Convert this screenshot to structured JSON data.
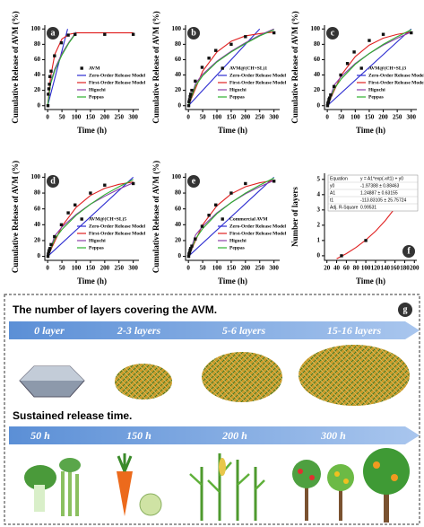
{
  "chart_data": [
    {
      "type": "scatter",
      "panel_label": "a",
      "x_label": "Time (h)",
      "y_label": "Cumulative Release of AVM (%)",
      "xlim": [
        -10,
        320
      ],
      "ylim": [
        -5,
        105
      ],
      "xticks": [
        0,
        50,
        100,
        150,
        200,
        250,
        300
      ],
      "yticks": [
        0,
        20,
        40,
        60,
        80,
        100
      ],
      "legend": "lower right",
      "series": [
        {
          "name": "AVM",
          "mode": "markers",
          "color": "#111111",
          "x": [
            1,
            2,
            4,
            6,
            8,
            12,
            24,
            48,
            72,
            96,
            200,
            300
          ],
          "values": [
            0,
            15,
            22,
            28,
            38,
            45,
            65,
            82,
            92,
            93,
            93,
            93
          ]
        },
        {
          "name": "Zero-Order Release Model",
          "mode": "lines",
          "color": "#2b2bd0",
          "x": [
            0,
            70
          ],
          "values": [
            0,
            100
          ]
        },
        {
          "name": "First-Order Release Model",
          "mode": "lines",
          "color": "#e02020",
          "x": [
            0,
            10,
            25,
            50,
            75,
            100,
            150,
            200,
            300
          ],
          "values": [
            0,
            37,
            67,
            87,
            93,
            95,
            95,
            95,
            95
          ]
        },
        {
          "name": "Higuchi",
          "mode": "lines",
          "color": "#8a3fa8",
          "x": [
            0,
            10,
            25,
            50,
            75,
            100
          ],
          "values": [
            0,
            30,
            48,
            68,
            83,
            96
          ]
        },
        {
          "name": "Peppas",
          "mode": "lines",
          "color": "#2fb02f",
          "x": [
            0,
            10,
            25,
            50,
            75,
            100
          ],
          "values": [
            0,
            28,
            46,
            66,
            82,
            95
          ]
        }
      ]
    },
    {
      "type": "scatter",
      "panel_label": "b",
      "x_label": "Time (h)",
      "y_label": "Cumulative Release of AVM (%)",
      "xlim": [
        -10,
        320
      ],
      "ylim": [
        -5,
        105
      ],
      "xticks": [
        0,
        50,
        100,
        150,
        200,
        250,
        300
      ],
      "yticks": [
        0,
        20,
        40,
        60,
        80,
        100
      ],
      "legend": "lower right",
      "series": [
        {
          "name": "AVM@(CH+SL)1",
          "mode": "markers",
          "color": "#111111",
          "x": [
            1,
            2,
            4,
            6,
            8,
            12,
            24,
            48,
            72,
            96,
            150,
            200,
            300
          ],
          "values": [
            0,
            5,
            8,
            12,
            15,
            20,
            32,
            50,
            62,
            72,
            80,
            90,
            95
          ]
        },
        {
          "name": "Zero-Order Release Model",
          "mode": "lines",
          "color": "#2b2bd0",
          "x": [
            0,
            250
          ],
          "values": [
            0,
            100
          ]
        },
        {
          "name": "First-Order Release Model",
          "mode": "lines",
          "color": "#e02020",
          "x": [
            0,
            50,
            100,
            150,
            200,
            250,
            300
          ],
          "values": [
            0,
            45,
            70,
            84,
            91,
            94,
            96
          ]
        },
        {
          "name": "Higuchi",
          "mode": "lines",
          "color": "#8a3fa8",
          "x": [
            0,
            25,
            50,
            100,
            150,
            200,
            250,
            300
          ],
          "values": [
            0,
            29,
            41,
            58,
            71,
            82,
            92,
            100
          ]
        },
        {
          "name": "Peppas",
          "mode": "lines",
          "color": "#2fb02f",
          "x": [
            0,
            25,
            50,
            100,
            150,
            200,
            250,
            300
          ],
          "values": [
            0,
            26,
            39,
            57,
            70,
            81,
            91,
            99
          ]
        }
      ]
    },
    {
      "type": "scatter",
      "panel_label": "c",
      "x_label": "Time (h)",
      "y_label": "Cumulative Release of AVM (%)",
      "xlim": [
        -10,
        320
      ],
      "ylim": [
        -5,
        105
      ],
      "xticks": [
        0,
        50,
        100,
        150,
        200,
        250,
        300
      ],
      "yticks": [
        0,
        20,
        40,
        60,
        80,
        100
      ],
      "legend": "lower right",
      "series": [
        {
          "name": "AVM@(CH+SL)3",
          "mode": "markers",
          "color": "#111111",
          "x": [
            1,
            2,
            4,
            6,
            8,
            12,
            24,
            48,
            72,
            96,
            150,
            200,
            300
          ],
          "values": [
            0,
            3,
            5,
            8,
            10,
            14,
            25,
            40,
            55,
            70,
            85,
            93,
            95
          ]
        },
        {
          "name": "Zero-Order Release Model",
          "mode": "lines",
          "color": "#2b2bd0",
          "x": [
            0,
            300
          ],
          "values": [
            0,
            100
          ]
        },
        {
          "name": "First-Order Release Model",
          "mode": "lines",
          "color": "#e02020",
          "x": [
            0,
            50,
            100,
            150,
            200,
            250,
            300
          ],
          "values": [
            0,
            40,
            64,
            79,
            88,
            93,
            96
          ]
        },
        {
          "name": "Higuchi",
          "mode": "lines",
          "color": "#8a3fa8",
          "x": [
            0,
            25,
            50,
            100,
            150,
            200,
            250,
            300
          ],
          "values": [
            0,
            27,
            38,
            55,
            68,
            79,
            88,
            96
          ]
        },
        {
          "name": "Peppas",
          "mode": "lines",
          "color": "#2fb02f",
          "x": [
            0,
            25,
            50,
            100,
            150,
            200,
            250,
            300
          ],
          "values": [
            0,
            22,
            35,
            54,
            68,
            80,
            90,
            99
          ]
        }
      ]
    },
    {
      "type": "scatter",
      "panel_label": "d",
      "x_label": "Time (h)",
      "y_label": "Cumulative Release of AVM (%)",
      "xlim": [
        -10,
        320
      ],
      "ylim": [
        -5,
        105
      ],
      "xticks": [
        0,
        50,
        100,
        150,
        200,
        250,
        300
      ],
      "yticks": [
        0,
        20,
        40,
        60,
        80,
        100
      ],
      "legend": "lower right",
      "series": [
        {
          "name": "AVM@(CH+SL)5",
          "mode": "markers",
          "color": "#111111",
          "x": [
            1,
            2,
            4,
            6,
            8,
            12,
            24,
            48,
            72,
            96,
            150,
            200,
            300
          ],
          "values": [
            0,
            3,
            6,
            8,
            10,
            15,
            25,
            40,
            55,
            65,
            80,
            90,
            92
          ]
        },
        {
          "name": "Zero-Order Release Model",
          "mode": "lines",
          "color": "#2b2bd0",
          "x": [
            0,
            300
          ],
          "values": [
            0,
            100
          ]
        },
        {
          "name": "First-Order Release Model",
          "mode": "lines",
          "color": "#e02020",
          "x": [
            0,
            50,
            100,
            150,
            200,
            250,
            300
          ],
          "values": [
            0,
            38,
            62,
            77,
            86,
            91,
            94
          ]
        },
        {
          "name": "Higuchi",
          "mode": "lines",
          "color": "#8a3fa8",
          "x": [
            0,
            25,
            50,
            100,
            150,
            200,
            250,
            300
          ],
          "values": [
            0,
            26,
            37,
            53,
            66,
            76,
            85,
            93
          ]
        },
        {
          "name": "Peppas",
          "mode": "lines",
          "color": "#2fb02f",
          "x": [
            0,
            25,
            50,
            100,
            150,
            200,
            250,
            300
          ],
          "values": [
            0,
            22,
            34,
            52,
            66,
            78,
            88,
            97
          ]
        }
      ]
    },
    {
      "type": "scatter",
      "panel_label": "e",
      "x_label": "Time (h)",
      "y_label": "Cumulative Release of AVM (%)",
      "xlim": [
        -10,
        320
      ],
      "ylim": [
        -5,
        105
      ],
      "xticks": [
        0,
        50,
        100,
        150,
        200,
        250,
        300
      ],
      "yticks": [
        0,
        20,
        40,
        60,
        80,
        100
      ],
      "legend": "lower right",
      "series": [
        {
          "name": "Commercial AVM",
          "mode": "markers",
          "color": "#111111",
          "x": [
            1,
            2,
            4,
            6,
            8,
            12,
            24,
            48,
            72,
            96,
            150,
            200,
            300
          ],
          "values": [
            0,
            3,
            5,
            8,
            10,
            13,
            22,
            38,
            52,
            65,
            80,
            92,
            95
          ]
        },
        {
          "name": "Zero-Order Release Model",
          "mode": "lines",
          "color": "#2b2bd0",
          "x": [
            0,
            300
          ],
          "values": [
            0,
            100
          ]
        },
        {
          "name": "First-Order Release Model",
          "mode": "lines",
          "color": "#e02020",
          "x": [
            0,
            50,
            100,
            150,
            200,
            250,
            300
          ],
          "values": [
            0,
            40,
            64,
            79,
            88,
            93,
            96
          ]
        },
        {
          "name": "Higuchi",
          "mode": "lines",
          "color": "#8a3fa8",
          "x": [
            0,
            25,
            50,
            100,
            150,
            200,
            250,
            300
          ],
          "values": [
            0,
            27,
            38,
            55,
            68,
            79,
            88,
            96
          ]
        },
        {
          "name": "Peppas",
          "mode": "lines",
          "color": "#2fb02f",
          "x": [
            0,
            25,
            50,
            100,
            150,
            200,
            250,
            300
          ],
          "values": [
            0,
            22,
            35,
            54,
            68,
            80,
            90,
            99
          ]
        }
      ]
    },
    {
      "type": "scatter",
      "panel_label": "f",
      "x_label": "Time (h)",
      "y_label": "Number of layers",
      "xlim": [
        15,
        205
      ],
      "ylim": [
        -0.3,
        5.4
      ],
      "xticks": [
        20,
        40,
        60,
        80,
        100,
        120,
        140,
        160,
        180,
        200
      ],
      "yticks": [
        0,
        1,
        2,
        3,
        4,
        5
      ],
      "inset_table": [
        [
          "Equation",
          "y = A1*exp(-x/t1) + y0"
        ],
        [
          "y0",
          "-1.97388 ± 0.88463"
        ],
        [
          "A1",
          "1.24887 ± 0.63155"
        ],
        [
          "t1",
          "-113.83105 ± 25.75724"
        ],
        [
          "Adj. R-Square",
          "0.99531"
        ]
      ],
      "series": [
        {
          "mode": "lines",
          "color": "#e02020",
          "x": [
            40,
            60,
            80,
            100,
            120,
            140,
            160,
            180,
            200
          ],
          "values": [
            -0.199,
            0.142,
            0.548,
            1.032,
            1.61,
            2.299,
            3.119,
            4.097,
            5.263
          ]
        },
        {
          "mode": "markers",
          "color": "#111111",
          "x": [
            50,
            100,
            200
          ],
          "values": [
            0,
            1,
            5
          ]
        }
      ]
    }
  ],
  "diagram": {
    "panel_label": "g",
    "layers_title": "The number of layers covering the AVM.",
    "layers": [
      "0 layer",
      "2-3 layers",
      "5-6 layers",
      "15-16 layers"
    ],
    "time_title": "Sustained release time.",
    "times": [
      "50 h",
      "150 h",
      "200 h",
      "300 h"
    ]
  }
}
